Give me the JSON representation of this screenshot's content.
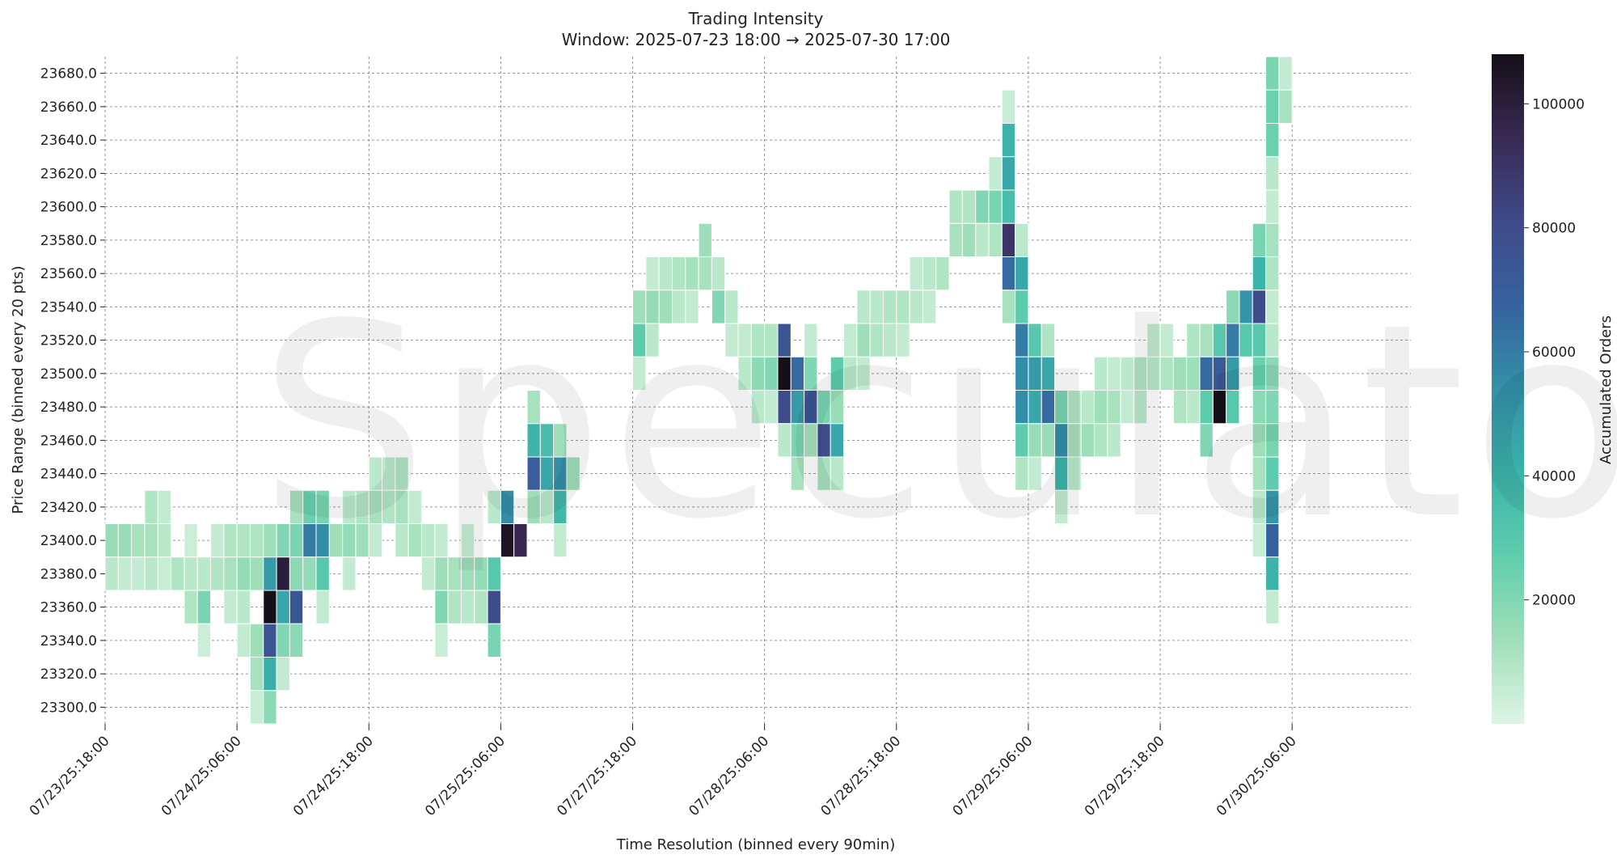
{
  "chart_data": {
    "type": "heatmap",
    "title": "Trading Intensity",
    "subtitle": "Window: 2025-07-23 18:00 → 2025-07-30 17:00",
    "xlabel": "Time Resolution (binned every 90min)",
    "ylabel": "Price Range (binned every 20 pts)",
    "x_bins": 99,
    "x_tick_labels": [
      "07/23/25:18:00",
      "07/24/25:06:00",
      "07/24/25:18:00",
      "07/25/25:06:00",
      "07/27/25:18:00",
      "07/28/25:06:00",
      "07/28/25:18:00",
      "07/29/25:06:00",
      "07/29/25:18:00",
      "07/30/25:06:00"
    ],
    "x_tick_index": [
      0,
      10,
      20,
      30,
      40,
      50,
      60,
      70,
      80,
      90
    ],
    "y_ticks": [
      23300,
      23320,
      23340,
      23360,
      23380,
      23400,
      23420,
      23440,
      23460,
      23480,
      23500,
      23520,
      23540,
      23560,
      23580,
      23600,
      23620,
      23640,
      23660,
      23680
    ],
    "y_tick_labels": [
      "23300.0",
      "23320.0",
      "23340.0",
      "23360.0",
      "23380.0",
      "23400.0",
      "23420.0",
      "23440.0",
      "23460.0",
      "23480.0",
      "23500.0",
      "23520.0",
      "23540.0",
      "23560.0",
      "23580.0",
      "23600.0",
      "23620.0",
      "23640.0",
      "23660.0",
      "23680.0"
    ],
    "ylim": [
      23290,
      23690
    ],
    "colorbar": {
      "label": "Accumulated Orders",
      "range": [
        0,
        108000
      ],
      "ticks": [
        20000,
        40000,
        60000,
        80000,
        100000
      ],
      "tick_labels": [
        "20000",
        "40000",
        "60000",
        "80000",
        "100000"
      ],
      "colors": [
        "#def5e5",
        "#a0dfb9",
        "#60ceac",
        "#3bb3aa",
        "#3490a8",
        "#36629f",
        "#3f4a8a",
        "#382a54",
        "#150f17"
      ]
    },
    "cells": [
      [
        0,
        23400,
        15000
      ],
      [
        0,
        23380,
        8000
      ],
      [
        1,
        23400,
        15000
      ],
      [
        1,
        23380,
        6000
      ],
      [
        2,
        23400,
        12000
      ],
      [
        2,
        23380,
        6000
      ],
      [
        3,
        23420,
        10000
      ],
      [
        3,
        23400,
        12000
      ],
      [
        3,
        23380,
        8000
      ],
      [
        4,
        23420,
        6000
      ],
      [
        4,
        23400,
        8000
      ],
      [
        4,
        23380,
        5000
      ],
      [
        5,
        23380,
        10000
      ],
      [
        6,
        23400,
        4000
      ],
      [
        6,
        23380,
        8000
      ],
      [
        6,
        23360,
        10000
      ],
      [
        7,
        23380,
        8000
      ],
      [
        7,
        23360,
        22000
      ],
      [
        7,
        23340,
        4000
      ],
      [
        8,
        23400,
        6000
      ],
      [
        8,
        23380,
        10000
      ],
      [
        9,
        23400,
        10000
      ],
      [
        9,
        23380,
        12000
      ],
      [
        9,
        23360,
        6000
      ],
      [
        10,
        23400,
        10000
      ],
      [
        10,
        23380,
        16000
      ],
      [
        10,
        23360,
        8000
      ],
      [
        10,
        23340,
        6000
      ],
      [
        11,
        23400,
        10000
      ],
      [
        11,
        23380,
        14000
      ],
      [
        11,
        23340,
        14000
      ],
      [
        11,
        23320,
        12000
      ],
      [
        11,
        23300,
        5000
      ],
      [
        12,
        23400,
        14000
      ],
      [
        12,
        23380,
        50000
      ],
      [
        12,
        23360,
        108000
      ],
      [
        12,
        23340,
        75000
      ],
      [
        12,
        23320,
        42000
      ],
      [
        12,
        23300,
        18000
      ],
      [
        13,
        23400,
        20000
      ],
      [
        13,
        23380,
        100000
      ],
      [
        13,
        23360,
        45000
      ],
      [
        13,
        23340,
        20000
      ],
      [
        13,
        23320,
        6000
      ],
      [
        14,
        23420,
        12000
      ],
      [
        14,
        23400,
        22000
      ],
      [
        14,
        23380,
        18000
      ],
      [
        14,
        23360,
        75000
      ],
      [
        14,
        23340,
        18000
      ],
      [
        15,
        23420,
        25000
      ],
      [
        15,
        23400,
        60000
      ],
      [
        15,
        23380,
        16000
      ],
      [
        16,
        23420,
        22000
      ],
      [
        16,
        23400,
        55000
      ],
      [
        16,
        23380,
        30000
      ],
      [
        16,
        23360,
        6000
      ],
      [
        17,
        23400,
        14000
      ],
      [
        18,
        23420,
        8000
      ],
      [
        18,
        23400,
        16000
      ],
      [
        18,
        23380,
        6000
      ],
      [
        19,
        23420,
        10000
      ],
      [
        19,
        23400,
        14000
      ],
      [
        20,
        23440,
        8000
      ],
      [
        20,
        23420,
        12000
      ],
      [
        20,
        23400,
        6000
      ],
      [
        21,
        23440,
        8000
      ],
      [
        21,
        23420,
        10000
      ],
      [
        22,
        23440,
        10000
      ],
      [
        22,
        23420,
        12000
      ],
      [
        22,
        23400,
        8000
      ],
      [
        23,
        23420,
        6000
      ],
      [
        23,
        23400,
        12000
      ],
      [
        24,
        23400,
        8000
      ],
      [
        24,
        23380,
        6000
      ],
      [
        25,
        23400,
        6000
      ],
      [
        25,
        23380,
        14000
      ],
      [
        25,
        23360,
        20000
      ],
      [
        25,
        23340,
        5000
      ],
      [
        26,
        23380,
        12000
      ],
      [
        26,
        23360,
        10000
      ],
      [
        27,
        23400,
        5000
      ],
      [
        27,
        23380,
        14000
      ],
      [
        27,
        23360,
        8000
      ],
      [
        28,
        23380,
        16000
      ],
      [
        28,
        23360,
        10000
      ],
      [
        29,
        23420,
        8000
      ],
      [
        29,
        23380,
        30000
      ],
      [
        29,
        23360,
        80000
      ],
      [
        29,
        23340,
        22000
      ],
      [
        30,
        23420,
        55000
      ],
      [
        30,
        23400,
        105000
      ],
      [
        31,
        23400,
        95000
      ],
      [
        32,
        23480,
        12000
      ],
      [
        32,
        23460,
        40000
      ],
      [
        32,
        23440,
        70000
      ],
      [
        32,
        23420,
        14000
      ],
      [
        33,
        23460,
        35000
      ],
      [
        33,
        23440,
        45000
      ],
      [
        33,
        23420,
        8000
      ],
      [
        34,
        23460,
        14000
      ],
      [
        34,
        23440,
        55000
      ],
      [
        34,
        23420,
        38000
      ],
      [
        34,
        23400,
        6000
      ],
      [
        35,
        23440,
        14000
      ],
      [
        40,
        23540,
        14000
      ],
      [
        40,
        23520,
        28000
      ],
      [
        40,
        23500,
        6000
      ],
      [
        41,
        23560,
        6000
      ],
      [
        41,
        23540,
        16000
      ],
      [
        41,
        23520,
        8000
      ],
      [
        42,
        23560,
        8000
      ],
      [
        42,
        23540,
        14000
      ],
      [
        43,
        23560,
        10000
      ],
      [
        43,
        23540,
        8000
      ],
      [
        44,
        23560,
        12000
      ],
      [
        44,
        23540,
        6000
      ],
      [
        45,
        23580,
        14000
      ],
      [
        45,
        23560,
        12000
      ],
      [
        46,
        23560,
        8000
      ],
      [
        46,
        23540,
        20000
      ],
      [
        47,
        23540,
        8000
      ],
      [
        47,
        23520,
        6000
      ],
      [
        48,
        23520,
        6000
      ],
      [
        48,
        23500,
        8000
      ],
      [
        49,
        23520,
        10000
      ],
      [
        49,
        23500,
        18000
      ],
      [
        49,
        23480,
        8000
      ],
      [
        50,
        23520,
        10000
      ],
      [
        50,
        23500,
        20000
      ],
      [
        50,
        23480,
        6000
      ],
      [
        51,
        23520,
        75000
      ],
      [
        51,
        23500,
        108000
      ],
      [
        51,
        23480,
        80000
      ],
      [
        51,
        23460,
        8000
      ],
      [
        52,
        23500,
        65000
      ],
      [
        52,
        23480,
        50000
      ],
      [
        52,
        23460,
        22000
      ],
      [
        52,
        23440,
        12000
      ],
      [
        53,
        23520,
        6000
      ],
      [
        53,
        23500,
        20000
      ],
      [
        53,
        23480,
        75000
      ],
      [
        53,
        23460,
        12000
      ],
      [
        54,
        23480,
        22000
      ],
      [
        54,
        23460,
        80000
      ],
      [
        54,
        23440,
        12000
      ],
      [
        55,
        23500,
        28000
      ],
      [
        55,
        23480,
        15000
      ],
      [
        55,
        23460,
        45000
      ],
      [
        55,
        23440,
        8000
      ],
      [
        56,
        23520,
        6000
      ],
      [
        56,
        23500,
        8000
      ],
      [
        57,
        23540,
        8000
      ],
      [
        57,
        23520,
        14000
      ],
      [
        57,
        23500,
        6000
      ],
      [
        58,
        23540,
        8000
      ],
      [
        58,
        23520,
        10000
      ],
      [
        59,
        23540,
        10000
      ],
      [
        59,
        23520,
        8000
      ],
      [
        60,
        23540,
        10000
      ],
      [
        60,
        23520,
        6000
      ],
      [
        61,
        23560,
        6000
      ],
      [
        61,
        23540,
        8000
      ],
      [
        62,
        23560,
        8000
      ],
      [
        62,
        23540,
        6000
      ],
      [
        63,
        23560,
        10000
      ],
      [
        64,
        23600,
        10000
      ],
      [
        64,
        23580,
        12000
      ],
      [
        65,
        23600,
        10000
      ],
      [
        65,
        23580,
        14000
      ],
      [
        66,
        23600,
        20000
      ],
      [
        66,
        23580,
        8000
      ],
      [
        67,
        23620,
        6000
      ],
      [
        67,
        23600,
        22000
      ],
      [
        67,
        23580,
        10000
      ],
      [
        68,
        23660,
        5000
      ],
      [
        68,
        23640,
        40000
      ],
      [
        68,
        23620,
        45000
      ],
      [
        68,
        23600,
        35000
      ],
      [
        68,
        23580,
        90000
      ],
      [
        68,
        23560,
        65000
      ],
      [
        68,
        23540,
        12000
      ],
      [
        69,
        23580,
        8000
      ],
      [
        69,
        23560,
        45000
      ],
      [
        69,
        23540,
        28000
      ],
      [
        69,
        23520,
        60000
      ],
      [
        69,
        23500,
        55000
      ],
      [
        69,
        23480,
        55000
      ],
      [
        69,
        23460,
        28000
      ],
      [
        69,
        23440,
        10000
      ],
      [
        70,
        23520,
        30000
      ],
      [
        70,
        23500,
        50000
      ],
      [
        70,
        23480,
        45000
      ],
      [
        70,
        23460,
        15000
      ],
      [
        70,
        23440,
        6000
      ],
      [
        71,
        23520,
        10000
      ],
      [
        71,
        23500,
        45000
      ],
      [
        71,
        23480,
        65000
      ],
      [
        71,
        23460,
        15000
      ],
      [
        72,
        23480,
        22000
      ],
      [
        72,
        23460,
        55000
      ],
      [
        72,
        23440,
        40000
      ],
      [
        72,
        23420,
        6000
      ],
      [
        73,
        23480,
        10000
      ],
      [
        73,
        23460,
        12000
      ],
      [
        73,
        23440,
        8000
      ],
      [
        74,
        23480,
        8000
      ],
      [
        74,
        23460,
        14000
      ],
      [
        75,
        23500,
        8000
      ],
      [
        75,
        23480,
        14000
      ],
      [
        75,
        23460,
        10000
      ],
      [
        76,
        23500,
        6000
      ],
      [
        76,
        23480,
        12000
      ],
      [
        76,
        23460,
        8000
      ],
      [
        77,
        23500,
        8000
      ],
      [
        77,
        23480,
        6000
      ],
      [
        78,
        23500,
        10000
      ],
      [
        78,
        23480,
        8000
      ],
      [
        79,
        23520,
        6000
      ],
      [
        79,
        23500,
        8000
      ],
      [
        80,
        23520,
        6000
      ],
      [
        80,
        23500,
        10000
      ],
      [
        81,
        23500,
        14000
      ],
      [
        81,
        23480,
        10000
      ],
      [
        82,
        23520,
        10000
      ],
      [
        82,
        23500,
        14000
      ],
      [
        82,
        23480,
        8000
      ],
      [
        83,
        23520,
        12000
      ],
      [
        83,
        23500,
        65000
      ],
      [
        83,
        23480,
        28000
      ],
      [
        83,
        23460,
        20000
      ],
      [
        84,
        23520,
        30000
      ],
      [
        84,
        23500,
        72000
      ],
      [
        84,
        23480,
        108000
      ],
      [
        85,
        23540,
        18000
      ],
      [
        85,
        23520,
        60000
      ],
      [
        85,
        23500,
        50000
      ],
      [
        85,
        23480,
        30000
      ],
      [
        86,
        23540,
        52000
      ],
      [
        86,
        23520,
        30000
      ],
      [
        87,
        23580,
        22000
      ],
      [
        87,
        23560,
        40000
      ],
      [
        87,
        23540,
        80000
      ],
      [
        87,
        23520,
        30000
      ],
      [
        87,
        23500,
        25000
      ],
      [
        87,
        23480,
        18000
      ],
      [
        87,
        23460,
        14000
      ],
      [
        87,
        23440,
        12000
      ],
      [
        87,
        23420,
        8000
      ],
      [
        87,
        23400,
        5000
      ],
      [
        88,
        23680,
        22000
      ],
      [
        88,
        23660,
        25000
      ],
      [
        88,
        23640,
        25000
      ],
      [
        88,
        23620,
        8000
      ],
      [
        88,
        23600,
        6000
      ],
      [
        88,
        23580,
        12000
      ],
      [
        88,
        23560,
        10000
      ],
      [
        88,
        23540,
        6000
      ],
      [
        88,
        23520,
        8000
      ],
      [
        88,
        23500,
        18000
      ],
      [
        88,
        23480,
        20000
      ],
      [
        88,
        23460,
        22000
      ],
      [
        88,
        23440,
        28000
      ],
      [
        88,
        23420,
        52000
      ],
      [
        88,
        23400,
        68000
      ],
      [
        88,
        23380,
        40000
      ],
      [
        88,
        23360,
        6000
      ],
      [
        89,
        23680,
        6000
      ],
      [
        89,
        23660,
        12000
      ]
    ]
  }
}
